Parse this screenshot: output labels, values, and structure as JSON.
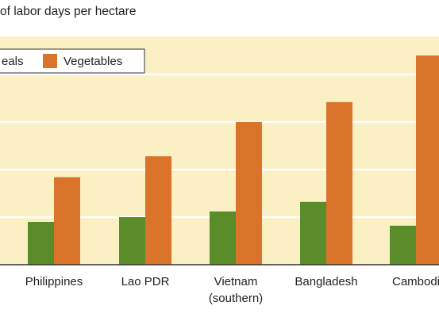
{
  "chart_data": {
    "type": "bar",
    "title": "of labor days per hectare",
    "xlabel": "",
    "ylabel": "",
    "categories": [
      [
        "Philippines"
      ],
      [
        "Lao PDR"
      ],
      [
        "Vietnam",
        "(southern)"
      ],
      [
        "Bangladesh"
      ],
      [
        "Cambodi"
      ]
    ],
    "series": [
      {
        "name": "eals",
        "color": "#5b8c2a",
        "values": [
          45,
          50,
          56,
          66,
          41
        ]
      },
      {
        "name": "Vegetables",
        "color": "#d9742a",
        "values": [
          92,
          114,
          150,
          171,
          220
        ]
      }
    ],
    "ylim": [
      0,
      240
    ],
    "grid": true,
    "legend_position": "top-left",
    "plot_background": "#fbefc4",
    "gridline_color": "#ffffff"
  }
}
